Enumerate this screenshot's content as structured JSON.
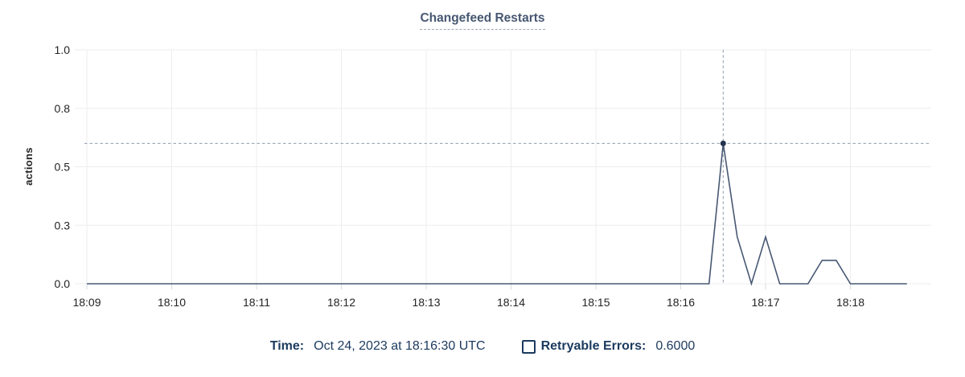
{
  "title": {
    "text": "Changefeed Restarts"
  },
  "colors": {
    "title_text": "#475872",
    "series_line": "#475872",
    "hover_dot": "#24334f",
    "crosshair": "#8e9dae",
    "gridline": "#ededed",
    "axis_tick": "#d7dade",
    "axis_label_text": "#242424",
    "legend_text": "#1c3a5e"
  },
  "legend": {
    "time_label": "Time:",
    "time_value": "Oct 24, 2023 at 18:16:30 UTC",
    "series_label": "Retryable Errors:",
    "series_value": "0.6000"
  },
  "chart_data": {
    "type": "line",
    "title": "Changefeed Restarts",
    "xlabel": "",
    "ylabel": "actions",
    "ylim": [
      0,
      1.0
    ],
    "grid": true,
    "legend_position": "bottom-center",
    "y_tick_values": [
      0,
      0.25,
      0.5,
      0.75,
      1.0
    ],
    "y_tick_labels": [
      "0.0",
      "0.3",
      "0.5",
      "0.8",
      "1.0"
    ],
    "x_tick_labels": [
      "18:09",
      "18:10",
      "18:11",
      "18:12",
      "18:13",
      "18:14",
      "18:15",
      "18:16",
      "18:17",
      "18:18"
    ],
    "hover": {
      "time": "18:16:30",
      "value": 0.6,
      "value_label": "0.6000",
      "date_label": "Oct 24, 2023 at 18:16:30 UTC"
    },
    "series": [
      {
        "name": "Retryable Errors",
        "color": "#475872",
        "points": [
          [
            "18:09:00",
            0
          ],
          [
            "18:09:10",
            0
          ],
          [
            "18:09:20",
            0
          ],
          [
            "18:09:30",
            0
          ],
          [
            "18:09:40",
            0
          ],
          [
            "18:09:50",
            0
          ],
          [
            "18:10:00",
            0
          ],
          [
            "18:10:10",
            0
          ],
          [
            "18:10:20",
            0
          ],
          [
            "18:10:30",
            0
          ],
          [
            "18:10:40",
            0
          ],
          [
            "18:10:50",
            0
          ],
          [
            "18:11:00",
            0
          ],
          [
            "18:11:10",
            0
          ],
          [
            "18:11:20",
            0
          ],
          [
            "18:11:30",
            0
          ],
          [
            "18:11:40",
            0
          ],
          [
            "18:11:50",
            0
          ],
          [
            "18:12:00",
            0
          ],
          [
            "18:12:10",
            0
          ],
          [
            "18:12:20",
            0
          ],
          [
            "18:12:30",
            0
          ],
          [
            "18:12:40",
            0
          ],
          [
            "18:12:50",
            0
          ],
          [
            "18:13:00",
            0
          ],
          [
            "18:13:10",
            0
          ],
          [
            "18:13:20",
            0
          ],
          [
            "18:13:30",
            0
          ],
          [
            "18:13:40",
            0
          ],
          [
            "18:13:50",
            0
          ],
          [
            "18:14:00",
            0
          ],
          [
            "18:14:10",
            0
          ],
          [
            "18:14:20",
            0
          ],
          [
            "18:14:30",
            0
          ],
          [
            "18:14:40",
            0
          ],
          [
            "18:14:50",
            0
          ],
          [
            "18:15:00",
            0
          ],
          [
            "18:15:10",
            0
          ],
          [
            "18:15:20",
            0
          ],
          [
            "18:15:30",
            0
          ],
          [
            "18:15:40",
            0
          ],
          [
            "18:15:50",
            0
          ],
          [
            "18:16:00",
            0
          ],
          [
            "18:16:10",
            0
          ],
          [
            "18:16:20",
            0
          ],
          [
            "18:16:30",
            0.6
          ],
          [
            "18:16:40",
            0.2
          ],
          [
            "18:16:50",
            0
          ],
          [
            "18:17:00",
            0.2
          ],
          [
            "18:17:10",
            0
          ],
          [
            "18:17:20",
            0
          ],
          [
            "18:17:30",
            0
          ],
          [
            "18:17:40",
            0.1
          ],
          [
            "18:17:50",
            0.1
          ],
          [
            "18:18:00",
            0
          ],
          [
            "18:18:10",
            0
          ],
          [
            "18:18:20",
            0
          ],
          [
            "18:18:30",
            0
          ],
          [
            "18:18:40",
            0
          ]
        ]
      }
    ]
  }
}
